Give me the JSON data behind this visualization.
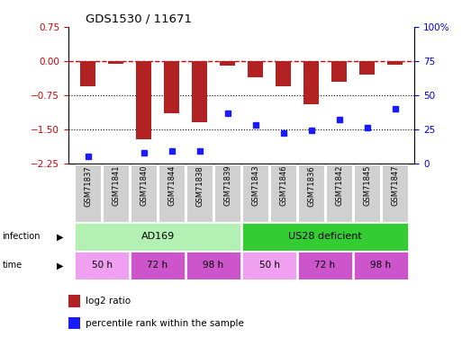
{
  "title": "GDS1530 / 11671",
  "samples": [
    "GSM71837",
    "GSM71841",
    "GSM71840",
    "GSM71844",
    "GSM71838",
    "GSM71839",
    "GSM71843",
    "GSM71846",
    "GSM71836",
    "GSM71842",
    "GSM71845",
    "GSM71847"
  ],
  "log2_ratio": [
    -0.55,
    -0.05,
    -1.72,
    -1.15,
    -1.35,
    -0.1,
    -0.35,
    -0.55,
    -0.95,
    -0.45,
    -0.3,
    -0.07
  ],
  "percentile_rank": [
    5,
    null,
    8,
    9,
    9,
    37,
    28,
    22,
    24,
    32,
    26,
    40
  ],
  "ylim_left": [
    -2.25,
    0.75
  ],
  "ylim_right": [
    0,
    100
  ],
  "yticks_left": [
    0.75,
    0,
    -0.75,
    -1.5,
    -2.25
  ],
  "yticks_right": [
    100,
    75,
    50,
    25,
    0
  ],
  "hlines": [
    -0.75,
    -1.5
  ],
  "bar_color": "#b22222",
  "scatter_color": "#1a1aff",
  "dashed_line_color": "#cc0000",
  "infection_groups": [
    {
      "label": "AD169",
      "start": 0,
      "end": 5,
      "color": "#b3f0b3"
    },
    {
      "label": "US28 deficient",
      "start": 6,
      "end": 11,
      "color": "#33cc33"
    }
  ],
  "time_groups": [
    {
      "label": "50 h",
      "start": 0,
      "end": 1,
      "color": "#f0a0f0"
    },
    {
      "label": "72 h",
      "start": 2,
      "end": 3,
      "color": "#cc55cc"
    },
    {
      "label": "98 h",
      "start": 4,
      "end": 5,
      "color": "#cc55cc"
    },
    {
      "label": "50 h",
      "start": 6,
      "end": 7,
      "color": "#f0a0f0"
    },
    {
      "label": "72 h",
      "start": 8,
      "end": 9,
      "color": "#cc55cc"
    },
    {
      "label": "98 h",
      "start": 10,
      "end": 11,
      "color": "#cc55cc"
    }
  ],
  "legend_items": [
    {
      "label": "log2 ratio",
      "color": "#b22222"
    },
    {
      "label": "percentile rank within the sample",
      "color": "#1a1aff"
    }
  ],
  "sample_bg_color": "#d0d0d0",
  "sample_divider_color": "#aaaaaa"
}
